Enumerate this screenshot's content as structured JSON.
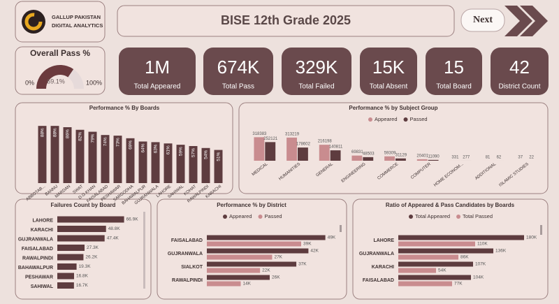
{
  "header": {
    "logo_line1": "GALLUP PAKISTAN",
    "logo_line2": "DIGITAL ANALYTICS",
    "title": "BISE 12th Grade 2025",
    "button": "Next"
  },
  "kpis": [
    {
      "value": "1M",
      "label": "Total Appeared"
    },
    {
      "value": "674K",
      "label": "Total Pass"
    },
    {
      "value": "329K",
      "label": "Total Failed"
    },
    {
      "value": "15K",
      "label": "Total Absent"
    },
    {
      "value": "15",
      "label": "Total Board"
    },
    {
      "value": "42",
      "label": "District Count"
    }
  ],
  "chart_data": [
    {
      "type": "gauge",
      "title": "Overall Pass %",
      "value": 69.1,
      "value_label": "69.1%",
      "ylim": [
        0,
        100
      ],
      "yticks": [
        {
          "value": 0,
          "label": "0%"
        },
        {
          "value": 100,
          "label": "100%"
        }
      ],
      "color": "#6b3a3d"
    },
    {
      "type": "bar",
      "orientation": "vertical",
      "title": "Performance % By Boards",
      "categories": [
        "ABBOTAB...",
        "BANNU",
        "MARDAN",
        "SWAT",
        "D.G KHAN",
        "FAISALABAD",
        "PESHAWAR",
        "SARGODHA",
        "BAHAWALPUR",
        "GUJRANWALA",
        "LAHORE",
        "SAHIWAL",
        "KOHAT",
        "RAWALPINDI",
        "KARACHI"
      ],
      "values": [
        88,
        88,
        86,
        82,
        79,
        74,
        73,
        69,
        64,
        63,
        61,
        59,
        57,
        54,
        51
      ],
      "value_labels": [
        "88%",
        "88%",
        "86%",
        "82%",
        "79%",
        "74%",
        "73%",
        "69%",
        "64%",
        "63%",
        "61%",
        "59%",
        "57%",
        "54%",
        "51%"
      ],
      "ylim": [
        0,
        100
      ],
      "color": "#5e3c3f"
    },
    {
      "type": "bar",
      "orientation": "vertical",
      "title": "Performance % by Subject Group",
      "categories": [
        "MEDICAL",
        "HUMANITIES",
        "GENERAL",
        "ENGINEERING",
        "COMMERCE",
        "COMPUTER",
        "HOME ECONOM...",
        "ADDITIONAL",
        "ISLAMIC STUDIES"
      ],
      "series": [
        {
          "name": "Appeared",
          "color": "#c98c8f",
          "values": [
            318383,
            313219,
            216198,
            69831,
            59309,
            20401,
            331,
            81,
            37
          ]
        },
        {
          "name": "Passed",
          "color": "#5e3c3f",
          "values": [
            252121,
            178602,
            140811,
            48503,
            31129,
            11090,
            277,
            62,
            22
          ]
        }
      ],
      "ylim": [
        0,
        350000
      ]
    },
    {
      "type": "bar",
      "orientation": "horizontal",
      "title": "Failures Count by Board",
      "categories": [
        "LAHORE",
        "KARACHI",
        "GUJRANWALA",
        "FAISALABAD",
        "RAWALPINDI",
        "BAHAWALPUR",
        "PESHAWAR",
        "SAHIWAL"
      ],
      "values": [
        66900,
        48800,
        47400,
        27300,
        26200,
        19300,
        16800,
        16700
      ],
      "value_labels": [
        "66.9K",
        "48.8K",
        "47.4K",
        "27.3K",
        "26.2K",
        "19.3K",
        "16.8K",
        "16.7K"
      ],
      "xlim": [
        0,
        70000
      ],
      "color": "#5e3c3f"
    },
    {
      "type": "bar",
      "orientation": "horizontal",
      "title": "Performance % by District",
      "categories": [
        "FAISALABAD",
        "GUJRANWALA",
        "SIALKOT",
        "RAWALPINDI"
      ],
      "series": [
        {
          "name": "Appeared",
          "color": "#5e3c3f",
          "values": [
            49000,
            42000,
            37000,
            26000
          ],
          "value_labels": [
            "49K",
            "42K",
            "37K",
            "26K"
          ]
        },
        {
          "name": "Passed",
          "color": "#c98c8f",
          "values": [
            39000,
            27000,
            22000,
            14000
          ],
          "value_labels": [
            "39K",
            "27K",
            "22K",
            "14K"
          ]
        }
      ],
      "xlim": [
        0,
        52000
      ]
    },
    {
      "type": "bar",
      "orientation": "horizontal",
      "title": "Ratio of Appeared & Pass Candidates by Boards",
      "categories": [
        "LAHORE",
        "GUJRANWALA",
        "KARACHI",
        "FAISALABAD"
      ],
      "series": [
        {
          "name": "Total Appeared",
          "color": "#5e3c3f",
          "values": [
            180000,
            136000,
            107000,
            104000
          ],
          "value_labels": [
            "180K",
            "136K",
            "107K",
            "104K"
          ]
        },
        {
          "name": "Total Passed",
          "color": "#c98c8f",
          "values": [
            110000,
            86000,
            54000,
            77000
          ],
          "value_labels": [
            "110K",
            "86K",
            "54K",
            "77K"
          ]
        }
      ],
      "xlim": [
        0,
        190000
      ]
    }
  ]
}
